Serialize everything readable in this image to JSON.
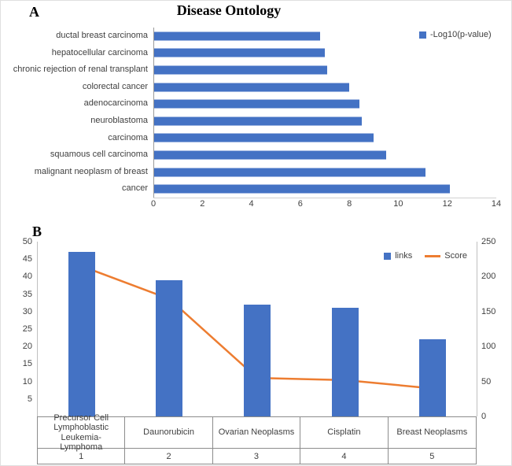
{
  "panels": {
    "a": {
      "label": "A"
    },
    "b": {
      "label": "B"
    }
  },
  "chart_data": [
    {
      "type": "bar",
      "orientation": "horizontal",
      "title": "Disease Ontology",
      "legend": [
        {
          "label": "-Log10(p-value)",
          "color": "#4472C4"
        }
      ],
      "categories": [
        "ductal breast carcinoma",
        "hepatocellular carcinoma",
        "chronic rejection of renal transplant",
        "colorectal cancer",
        "adenocarcinoma",
        "neuroblastoma",
        "carcinoma",
        "squamous cell carcinoma",
        "malignant neoplasm of breast",
        "cancer"
      ],
      "values": [
        6.8,
        7.0,
        7.1,
        8.0,
        8.4,
        8.5,
        9.0,
        9.5,
        11.1,
        12.1
      ],
      "xlabel": "",
      "xlim": [
        0,
        14
      ],
      "xticks": [
        0,
        2,
        4,
        6,
        8,
        10,
        12,
        14
      ],
      "bar_color": "#4472C4",
      "grid": false,
      "legend_position": "top-right"
    },
    {
      "type": "combo",
      "categories": [
        "Precursor Cell Lymphoblastic Leukemia-Lymphoma",
        "Daunorubicin",
        "Ovarian Neoplasms",
        "Cisplatin",
        "Breast Neoplasms"
      ],
      "category_ranks": [
        "1",
        "2",
        "3",
        "4",
        "5"
      ],
      "series": [
        {
          "name": "links",
          "type": "bar",
          "axis": "left",
          "color": "#4472C4",
          "values": [
            47,
            39,
            32,
            31,
            22
          ]
        },
        {
          "name": "Score",
          "type": "line",
          "axis": "right",
          "color": "#ED7D31",
          "values": [
            215,
            168,
            55,
            52,
            40
          ]
        }
      ],
      "left_axis": {
        "min": 0,
        "max": 50,
        "ticks": [
          5,
          10,
          15,
          20,
          25,
          30,
          35,
          40,
          45,
          50
        ]
      },
      "right_axis": {
        "min": 0,
        "max": 250,
        "ticks": [
          0,
          50,
          100,
          150,
          200,
          250
        ]
      },
      "grid": false,
      "legend_position": "top-right"
    }
  ]
}
